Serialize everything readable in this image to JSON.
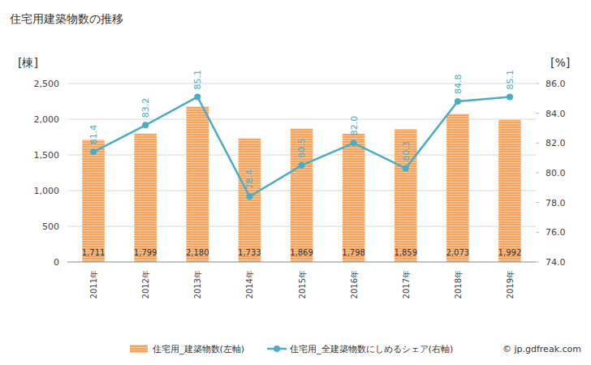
{
  "chart_data": {
    "type": "bar",
    "title": "住宅用建築物数の推移",
    "y_label": "[棟]",
    "y2_label": "[%]",
    "credit": "© jp.gdfreak.com",
    "categories": [
      "2011年",
      "2012年",
      "2013年",
      "2014年",
      "2015年",
      "2016年",
      "2017年",
      "2018年",
      "2019年"
    ],
    "series": [
      {
        "name": "住宅用_建築物数(左軸)",
        "type": "bar",
        "color": "#f6a45c",
        "values": [
          1711,
          1799,
          2180,
          1733,
          1869,
          1798,
          1859,
          2073,
          1992
        ],
        "value_labels": [
          "1,711",
          "1,799",
          "2,180",
          "1,733",
          "1,869",
          "1,798",
          "1,859",
          "2,073",
          "1,992"
        ]
      },
      {
        "name": "住宅用_全建築物数にしめるシェア(右軸)",
        "type": "line",
        "axis": "y2",
        "color": "#4bacc6",
        "marker": "circle",
        "values": [
          81.4,
          83.2,
          85.1,
          78.4,
          80.5,
          82.0,
          80.3,
          84.8,
          85.1
        ],
        "value_labels": [
          "81.4",
          "83.2",
          "85.1",
          "78.4",
          "80.5",
          "82.0",
          "80.3",
          "84.8",
          "85.1"
        ]
      }
    ],
    "ylim": [
      0,
      2500
    ],
    "yticks": [
      0,
      500,
      {
        "value": 1000,
        "label": "1,000"
      },
      {
        "value": 1500,
        "label": "1,500"
      },
      {
        "value": 2000,
        "label": "2,000"
      },
      {
        "value": 2500,
        "label": "2,500"
      }
    ],
    "y2lim": [
      74,
      86
    ],
    "y2ticks": [
      {
        "value": 74,
        "label": "74.0"
      },
      {
        "value": 76,
        "label": "76.0"
      },
      {
        "value": 78,
        "label": "78.0"
      },
      {
        "value": 80,
        "label": "80.0"
      },
      {
        "value": 82,
        "label": "82.0"
      },
      {
        "value": 84,
        "label": "84.0"
      },
      {
        "value": 86,
        "label": "86.0"
      }
    ],
    "grid": true,
    "data_labels": true,
    "legend": "bottom"
  }
}
